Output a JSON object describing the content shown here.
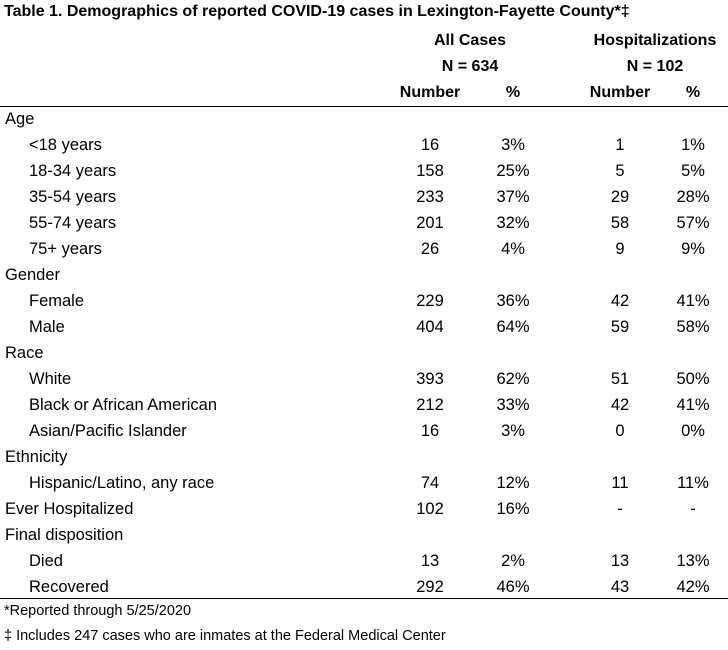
{
  "table": {
    "title": "Table 1. Demographics of reported COVID-19 cases in Lexington-Fayette County*‡",
    "groups": [
      {
        "label": "All Cases",
        "n": "N = 634"
      },
      {
        "label": "Hospitalizations",
        "n": "N = 102"
      }
    ],
    "col_headers": [
      "Number",
      "%",
      "Number",
      "%"
    ],
    "rows": [
      {
        "label": "Age",
        "values": [
          "",
          "",
          "",
          ""
        ]
      },
      {
        "label": "<18 years",
        "values": [
          "16",
          "3%",
          "1",
          "1%"
        ]
      },
      {
        "label": "18-34 years",
        "values": [
          "158",
          "25%",
          "5",
          "5%"
        ]
      },
      {
        "label": "35-54 years",
        "values": [
          "233",
          "37%",
          "29",
          "28%"
        ]
      },
      {
        "label": "55-74 years",
        "values": [
          "201",
          "32%",
          "58",
          "57%"
        ]
      },
      {
        "label": "75+ years",
        "values": [
          "26",
          "4%",
          "9",
          "9%"
        ]
      },
      {
        "label": "Gender",
        "values": [
          "",
          "",
          "",
          ""
        ]
      },
      {
        "label": "Female",
        "values": [
          "229",
          "36%",
          "42",
          "41%"
        ]
      },
      {
        "label": "Male",
        "values": [
          "404",
          "64%",
          "59",
          "58%"
        ]
      },
      {
        "label": "Race",
        "values": [
          "",
          "",
          "",
          ""
        ]
      },
      {
        "label": "White",
        "values": [
          "393",
          "62%",
          "51",
          "50%"
        ]
      },
      {
        "label": "Black or African American",
        "values": [
          "212",
          "33%",
          "42",
          "41%"
        ]
      },
      {
        "label": "Asian/Pacific Islander",
        "values": [
          "16",
          "3%",
          "0",
          "0%"
        ]
      },
      {
        "label": "Ethnicity",
        "values": [
          "",
          "",
          "",
          ""
        ]
      },
      {
        "label": "Hispanic/Latino, any race",
        "values": [
          "74",
          "12%",
          "11",
          "11%"
        ]
      },
      {
        "label": "Ever Hospitalized",
        "values": [
          "102",
          "16%",
          "-",
          "-"
        ]
      },
      {
        "label": "Final disposition",
        "values": [
          "",
          "",
          "",
          ""
        ]
      },
      {
        "label": "Died",
        "values": [
          "13",
          "2%",
          "13",
          "13%"
        ]
      },
      {
        "label": "Recovered",
        "values": [
          "292",
          "46%",
          "43",
          "42%"
        ]
      }
    ],
    "footnotes": [
      "*Reported through 5/25/2020",
      "‡ Includes 247 cases who are inmates at the Federal Medical Center"
    ]
  }
}
